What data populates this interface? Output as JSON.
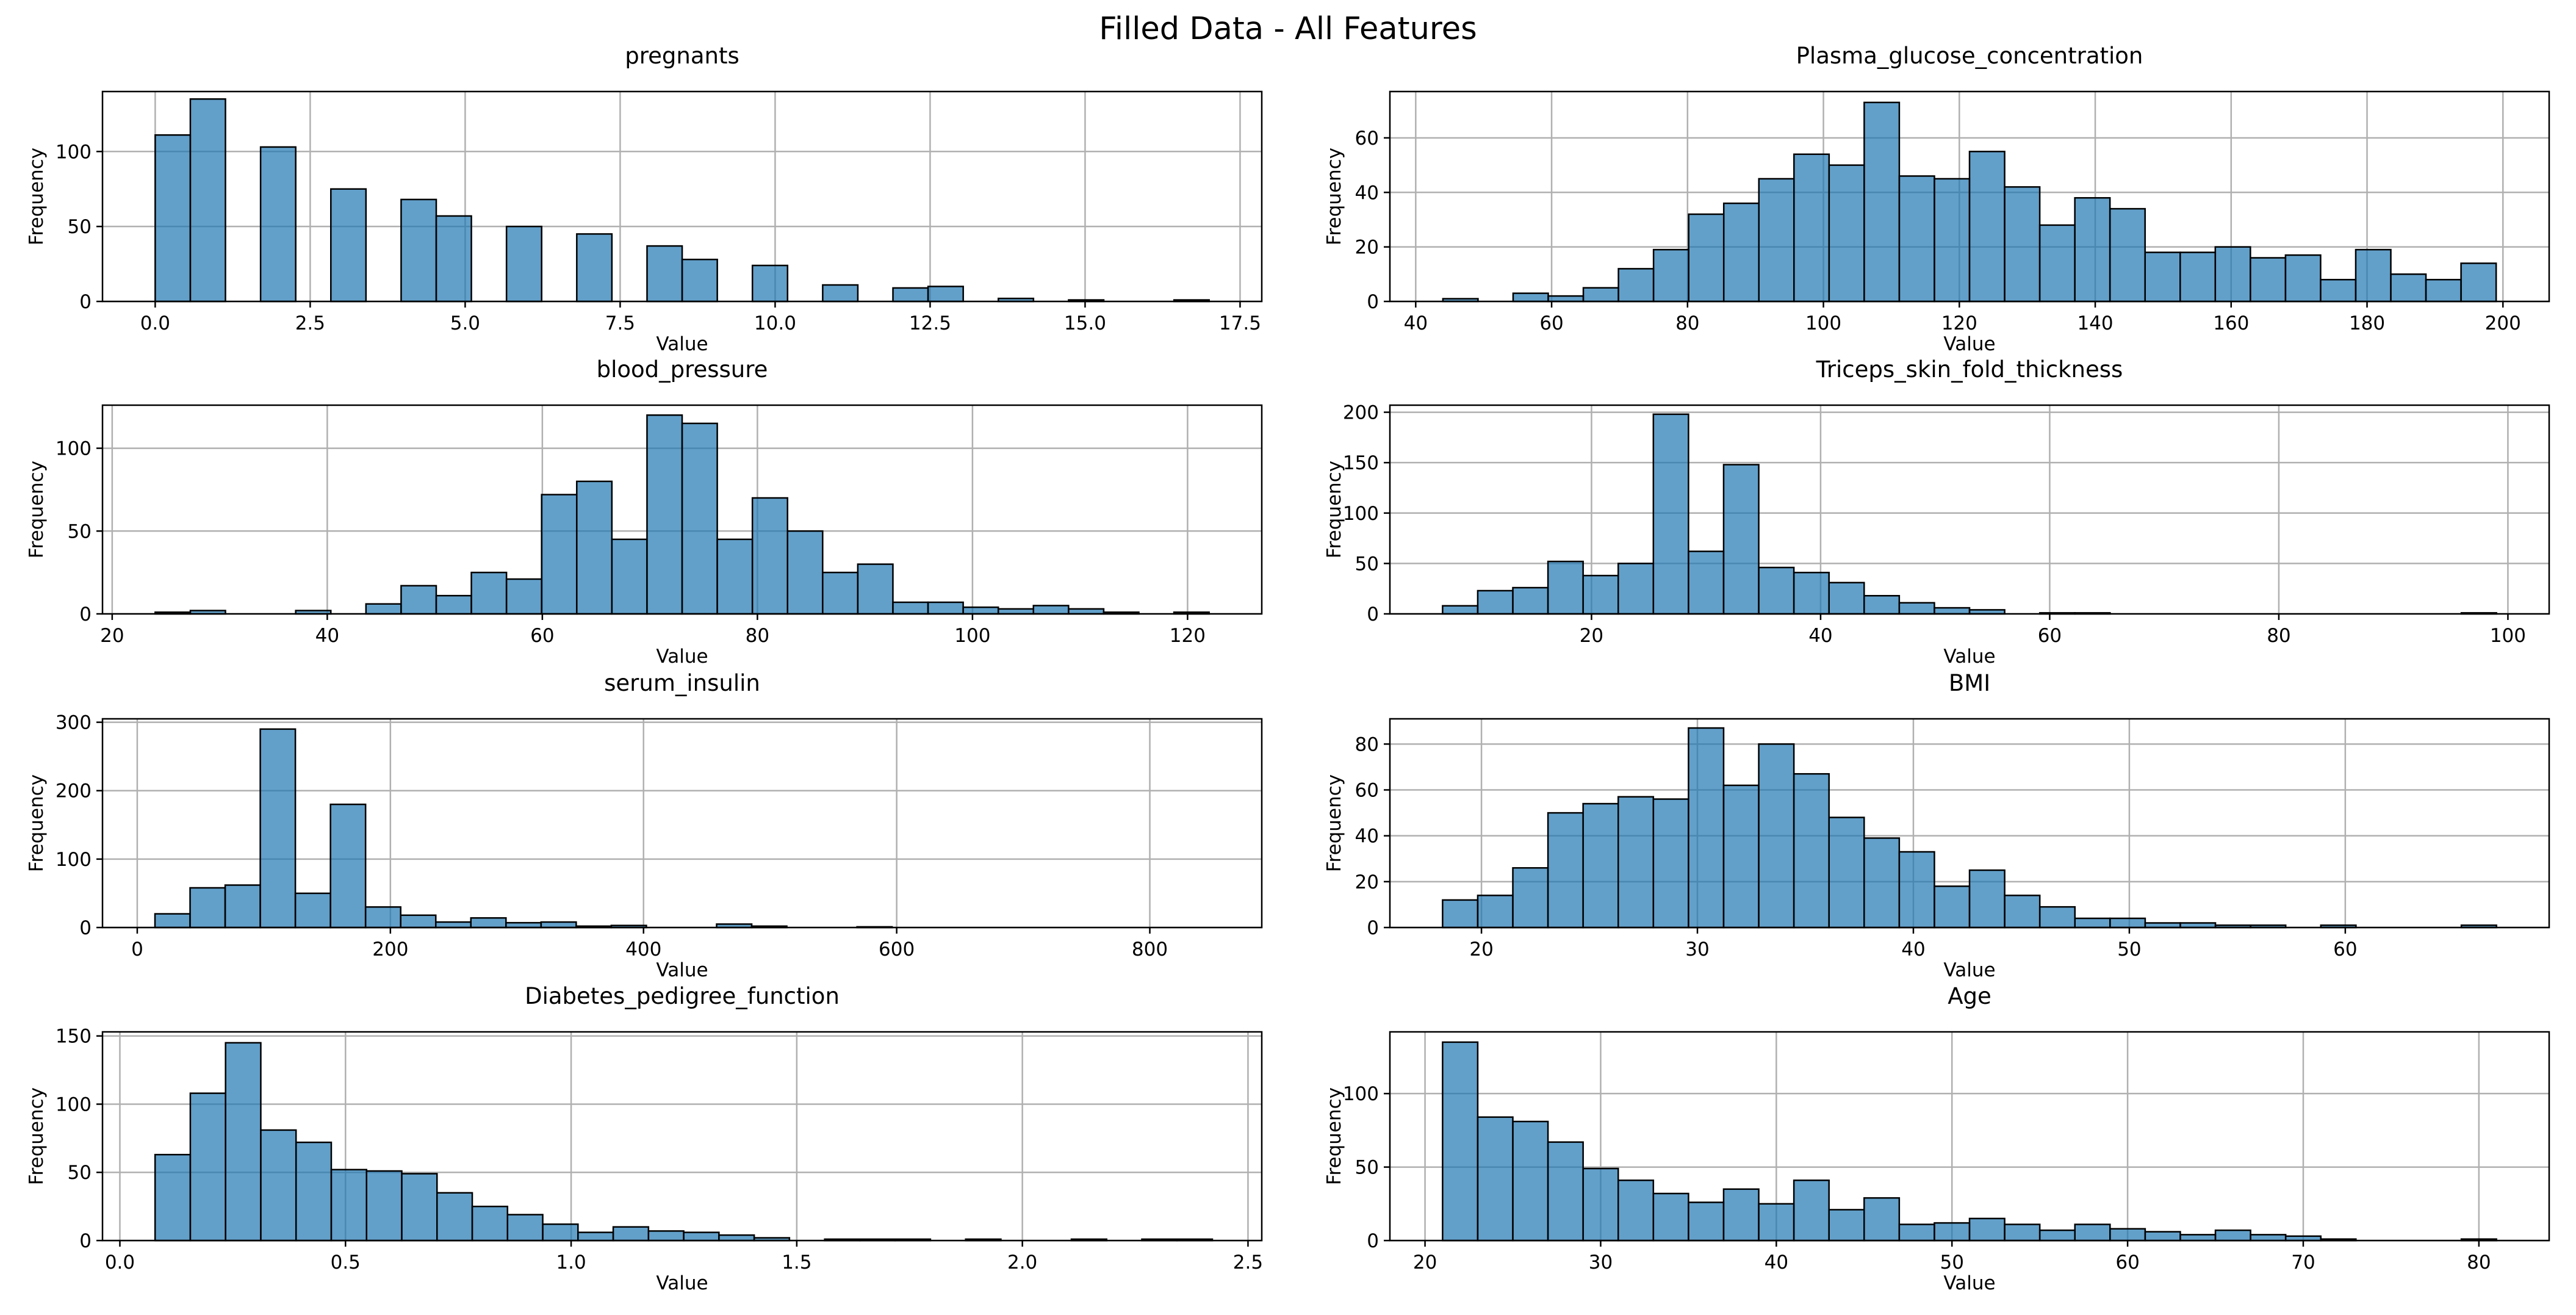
{
  "title": "Filled Data - All Features",
  "chart_data": [
    {
      "type": "bar",
      "title": "pregnants",
      "xlabel": "Value",
      "ylabel": "Frequency",
      "xlim": [
        -0.85,
        17.85
      ],
      "ylim": [
        0,
        140
      ],
      "xticks": [
        0,
        2.5,
        5,
        7.5,
        10,
        12.5,
        15,
        17.5
      ],
      "xtick_labels": [
        "0.0",
        "2.5",
        "5.0",
        "7.5",
        "10.0",
        "12.5",
        "15.0",
        "17.5"
      ],
      "yticks": [
        0,
        50,
        100
      ],
      "grid": true,
      "bin_start": 0,
      "bin_width": 0.5667,
      "values": [
        111,
        135,
        0,
        103,
        0,
        75,
        0,
        68,
        57,
        0,
        50,
        0,
        45,
        0,
        37,
        28,
        0,
        24,
        0,
        11,
        0,
        9,
        10,
        0,
        2,
        0,
        1,
        0,
        0,
        1
      ]
    },
    {
      "type": "bar",
      "title": "Plasma_glucose_concentration",
      "xlabel": "Value",
      "ylabel": "Frequency",
      "xlim": [
        36.2,
        206.8
      ],
      "ylim": [
        0,
        77
      ],
      "xticks": [
        40,
        60,
        80,
        100,
        120,
        140,
        160,
        180,
        200
      ],
      "xtick_labels": [
        "40",
        "60",
        "80",
        "100",
        "120",
        "140",
        "160",
        "180",
        "200"
      ],
      "yticks": [
        0,
        20,
        40,
        60
      ],
      "grid": true,
      "bin_start": 44,
      "bin_width": 5.1667,
      "values": [
        1,
        0,
        3,
        2,
        5,
        12,
        19,
        32,
        36,
        45,
        54,
        50,
        73,
        46,
        45,
        55,
        42,
        28,
        38,
        34,
        18,
        18,
        20,
        16,
        17,
        8,
        19,
        10,
        8,
        14
      ]
    },
    {
      "type": "bar",
      "title": "blood_pressure",
      "xlabel": "Value",
      "ylabel": "Frequency",
      "xlim": [
        19.1,
        126.9
      ],
      "ylim": [
        0,
        126
      ],
      "xticks": [
        20,
        40,
        60,
        80,
        100,
        120
      ],
      "xtick_labels": [
        "20",
        "40",
        "60",
        "80",
        "100",
        "120"
      ],
      "yticks": [
        0,
        50,
        100
      ],
      "grid": true,
      "bin_start": 24,
      "bin_width": 3.2667,
      "values": [
        1,
        2,
        0,
        0,
        2,
        0,
        6,
        17,
        11,
        25,
        21,
        72,
        80,
        45,
        120,
        115,
        45,
        70,
        50,
        25,
        30,
        7,
        7,
        4,
        3,
        5,
        3,
        1,
        0,
        1
      ]
    },
    {
      "type": "bar",
      "title": "Triceps_skin_fold_thickness",
      "xlabel": "Value",
      "ylabel": "Frequency",
      "xlim": [
        2.4,
        103.6
      ],
      "ylim": [
        0,
        207
      ],
      "xticks": [
        20,
        40,
        60,
        80,
        100
      ],
      "xtick_labels": [
        "20",
        "40",
        "60",
        "80",
        "100"
      ],
      "yticks": [
        0,
        50,
        100,
        150,
        200
      ],
      "grid": true,
      "bin_start": 7,
      "bin_width": 3.0667,
      "values": [
        8,
        23,
        26,
        52,
        38,
        50,
        198,
        62,
        148,
        46,
        41,
        31,
        18,
        11,
        6,
        4,
        0,
        1,
        1,
        0,
        0,
        0,
        0,
        0,
        0,
        0,
        0,
        0,
        0,
        1
      ]
    },
    {
      "type": "bar",
      "title": "serum_insulin",
      "xlabel": "Value",
      "ylabel": "Frequency",
      "xlim": [
        -27.45,
        888.45
      ],
      "ylim": [
        0,
        305
      ],
      "xticks": [
        0,
        200,
        400,
        600,
        800
      ],
      "xtick_labels": [
        "0",
        "200",
        "400",
        "600",
        "800"
      ],
      "yticks": [
        0,
        100,
        200,
        300
      ],
      "grid": true,
      "bin_start": 14,
      "bin_width": 27.7333,
      "values": [
        20,
        58,
        62,
        290,
        50,
        180,
        30,
        18,
        8,
        14,
        7,
        8,
        2,
        3,
        0,
        0,
        5,
        2,
        0,
        0,
        1,
        0,
        0,
        0,
        0,
        0,
        0,
        0,
        0,
        0
      ]
    },
    {
      "type": "bar",
      "title": "BMI",
      "xlabel": "Value",
      "ylabel": "Frequency",
      "xlim": [
        15.76,
        69.44
      ],
      "ylim": [
        0,
        91
      ],
      "xticks": [
        20,
        30,
        40,
        50,
        60
      ],
      "xtick_labels": [
        "20",
        "30",
        "40",
        "50",
        "60"
      ],
      "yticks": [
        0,
        20,
        40,
        60,
        80
      ],
      "grid": true,
      "bin_start": 18.2,
      "bin_width": 1.6267,
      "values": [
        12,
        14,
        26,
        50,
        54,
        57,
        56,
        87,
        62,
        80,
        67,
        48,
        39,
        33,
        18,
        25,
        14,
        9,
        4,
        4,
        2,
        2,
        1,
        1,
        0,
        1,
        0,
        0,
        0,
        1
      ]
    },
    {
      "type": "bar",
      "title": "Diabetes_pedigree_function",
      "xlabel": "Value",
      "ylabel": "Frequency",
      "xlim": [
        -0.0385,
        2.5305
      ],
      "ylim": [
        0,
        153
      ],
      "xticks": [
        0,
        0.5,
        1,
        1.5,
        2,
        2.5
      ],
      "xtick_labels": [
        "0.0",
        "0.5",
        "1.0",
        "1.5",
        "2.0",
        "2.5"
      ],
      "yticks": [
        0,
        50,
        100,
        150
      ],
      "grid": true,
      "bin_start": 0.078,
      "bin_width": 0.0781,
      "values": [
        63,
        108,
        145,
        81,
        72,
        52,
        51,
        49,
        35,
        25,
        19,
        12,
        6,
        10,
        7,
        6,
        4,
        2,
        0,
        1,
        1,
        1,
        0,
        1,
        0,
        0,
        1,
        0,
        1,
        1
      ]
    },
    {
      "type": "bar",
      "title": "Age",
      "xlabel": "Value",
      "ylabel": "Frequency",
      "xlim": [
        18,
        84
      ],
      "ylim": [
        0,
        142
      ],
      "xticks": [
        20,
        30,
        40,
        50,
        60,
        70,
        80
      ],
      "xtick_labels": [
        "20",
        "30",
        "40",
        "50",
        "60",
        "70",
        "80"
      ],
      "yticks": [
        0,
        50,
        100
      ],
      "grid": true,
      "bin_start": 21,
      "bin_width": 2,
      "values": [
        135,
        84,
        81,
        67,
        49,
        41,
        32,
        26,
        35,
        25,
        41,
        21,
        29,
        11,
        12,
        15,
        11,
        7,
        11,
        8,
        6,
        4,
        7,
        4,
        3,
        1,
        0,
        0,
        0,
        1
      ]
    }
  ]
}
